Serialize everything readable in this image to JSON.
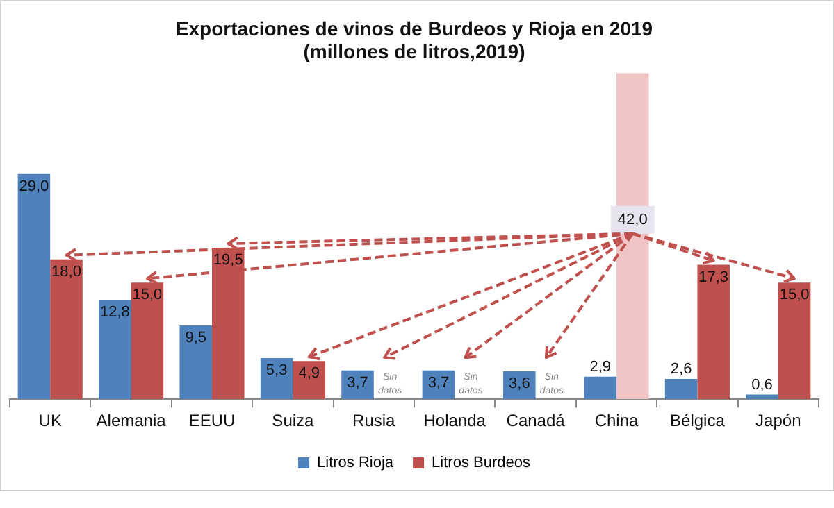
{
  "chart_data": {
    "type": "bar",
    "title": "Exportaciones de vinos de Burdeos y Rioja en 2019",
    "subtitle": "(millones de litros,2019)",
    "categories": [
      "UK",
      "Alemania",
      "EEUU",
      "Suiza",
      "Rusia",
      "Holanda",
      "Canadá",
      "China",
      "Bélgica",
      "Japón"
    ],
    "series": [
      {
        "name": "Litros Rioja",
        "color": "#4f81bd",
        "values": [
          29.0,
          12.8,
          9.5,
          5.3,
          3.7,
          3.7,
          3.6,
          2.9,
          2.6,
          0.6
        ],
        "value_labels": [
          "29,0",
          "12,8",
          "9,5",
          "5,3",
          "3,7",
          "3,7",
          "3,6",
          "2,9",
          "2,6",
          "0,6"
        ]
      },
      {
        "name": "Litros Burdeos",
        "color": "#c0504d",
        "colors": [
          "#c0504d",
          "#c0504d",
          "#c0504d",
          "#c0504d",
          "#c0504d",
          "#c0504d",
          "#c0504d",
          "#f0c4c4",
          "#c0504d",
          "#c0504d"
        ],
        "values": [
          18.0,
          15.0,
          19.5,
          4.9,
          null,
          null,
          null,
          42.0,
          17.3,
          15.0
        ],
        "value_labels": [
          "18,0",
          "15,0",
          "19,5",
          "4,9",
          "Sin datos",
          "Sin datos",
          "Sin datos",
          "42,0",
          "17,3",
          "15,0"
        ]
      }
    ],
    "ylim": [
      0,
      42
    ],
    "grid": false,
    "legend": "bottom"
  }
}
